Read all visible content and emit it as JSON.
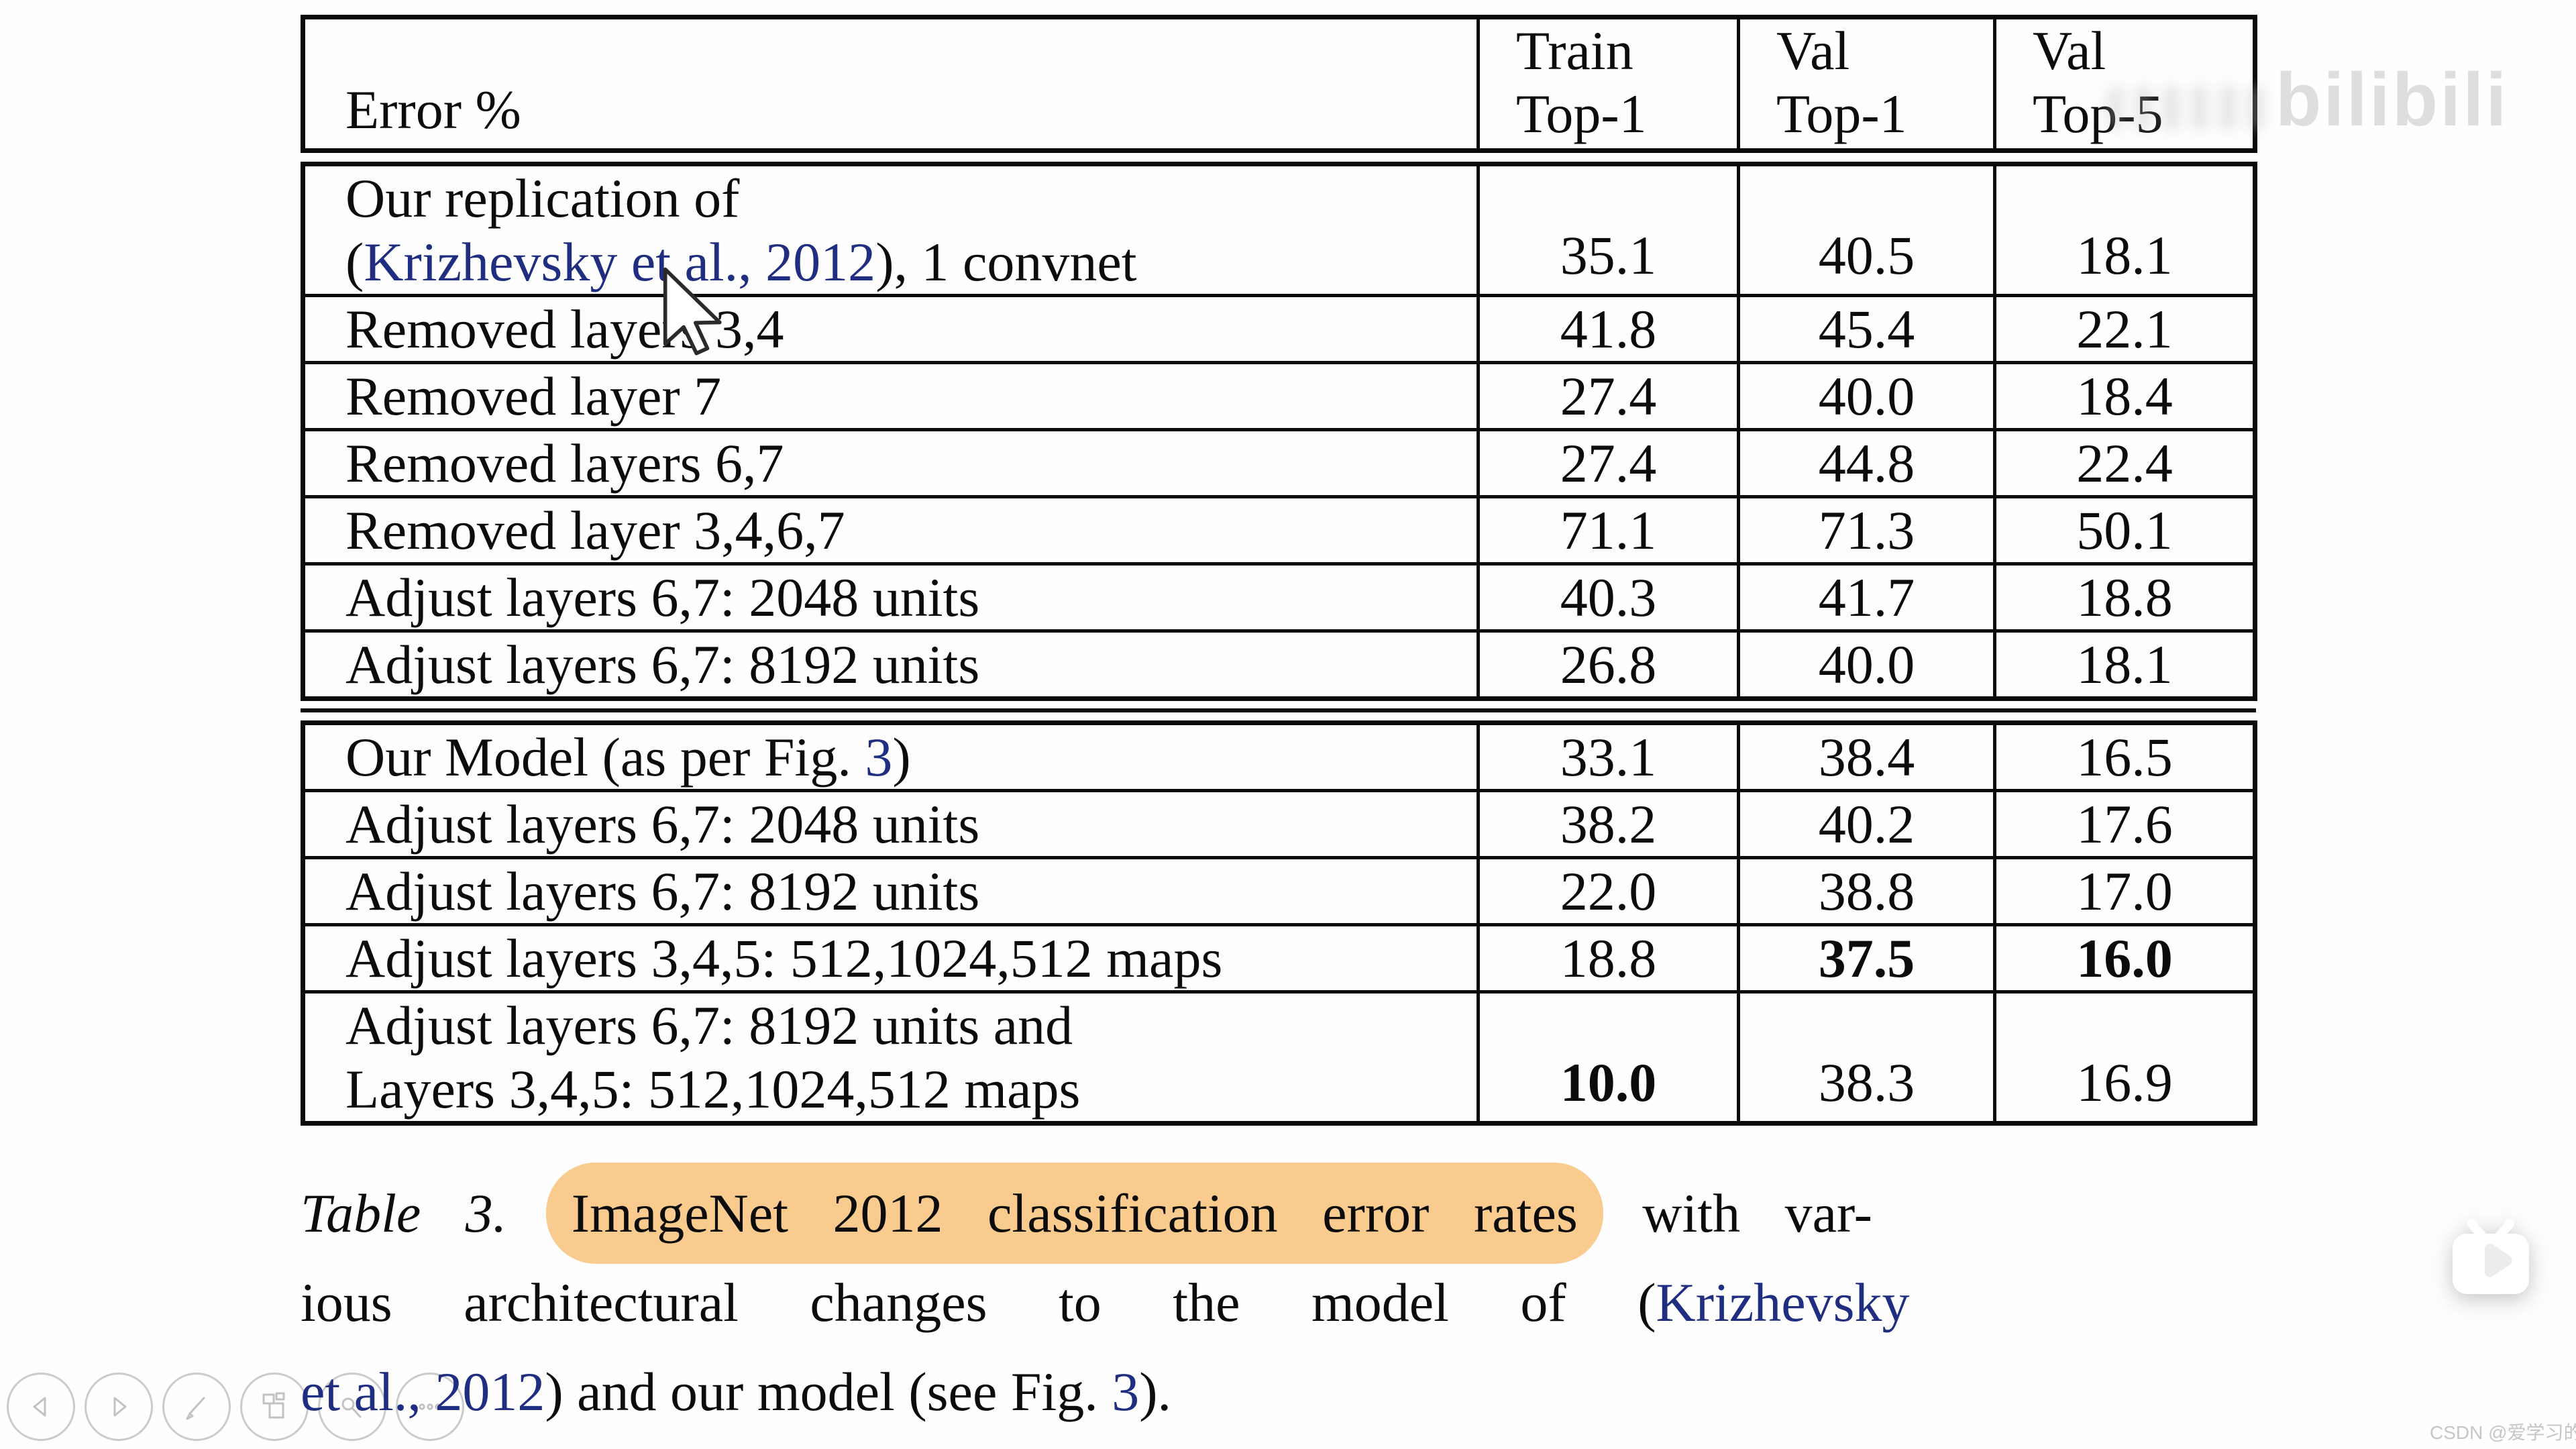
{
  "colors": {
    "link_blue": "#1f2e80",
    "highlight_orange": "#f9cb8e",
    "table_border": "#0a0a0a",
    "page_background": "#fefefe"
  },
  "table": {
    "header": {
      "row_label_column": "Error %",
      "value_columns": [
        [
          "Train",
          "Top-1"
        ],
        [
          "Val",
          "Top-1"
        ],
        [
          "Val",
          "Top-5"
        ]
      ]
    },
    "block1": {
      "rows": [
        {
          "lines": [
            [
              {
                "t": "Our replication of"
              }
            ],
            [
              {
                "t": "("
              },
              {
                "t": "Krizhevsky et al., 2012",
                "link": true
              },
              {
                "t": "), 1 convnet"
              }
            ]
          ],
          "values": [
            {
              "t": "35.1"
            },
            {
              "t": "40.5"
            },
            {
              "t": "18.1"
            }
          ]
        },
        {
          "lines": [
            [
              {
                "t": "Removed layers 3,4"
              }
            ]
          ],
          "values": [
            {
              "t": "41.8"
            },
            {
              "t": "45.4"
            },
            {
              "t": "22.1"
            }
          ]
        },
        {
          "lines": [
            [
              {
                "t": "Removed layer 7"
              }
            ]
          ],
          "values": [
            {
              "t": "27.4"
            },
            {
              "t": "40.0"
            },
            {
              "t": "18.4"
            }
          ]
        },
        {
          "lines": [
            [
              {
                "t": "Removed layers 6,7"
              }
            ]
          ],
          "values": [
            {
              "t": "27.4"
            },
            {
              "t": "44.8"
            },
            {
              "t": "22.4"
            }
          ]
        },
        {
          "lines": [
            [
              {
                "t": "Removed layer 3,4,6,7"
              }
            ]
          ],
          "values": [
            {
              "t": "71.1"
            },
            {
              "t": "71.3"
            },
            {
              "t": "50.1"
            }
          ]
        },
        {
          "lines": [
            [
              {
                "t": "Adjust layers 6,7: 2048 units"
              }
            ]
          ],
          "values": [
            {
              "t": "40.3"
            },
            {
              "t": "41.7"
            },
            {
              "t": "18.8"
            }
          ]
        },
        {
          "lines": [
            [
              {
                "t": "Adjust layers 6,7: 8192 units"
              }
            ]
          ],
          "values": [
            {
              "t": "26.8"
            },
            {
              "t": "40.0"
            },
            {
              "t": "18.1"
            }
          ]
        }
      ]
    },
    "block2": {
      "rows": [
        {
          "lines": [
            [
              {
                "t": "Our Model (as per Fig. "
              },
              {
                "t": "3",
                "link": true
              },
              {
                "t": ")"
              }
            ]
          ],
          "values": [
            {
              "t": "33.1"
            },
            {
              "t": "38.4"
            },
            {
              "t": "16.5"
            }
          ]
        },
        {
          "lines": [
            [
              {
                "t": "Adjust layers 6,7: 2048 units"
              }
            ]
          ],
          "values": [
            {
              "t": "38.2"
            },
            {
              "t": "40.2"
            },
            {
              "t": "17.6"
            }
          ]
        },
        {
          "lines": [
            [
              {
                "t": "Adjust layers 6,7: 8192 units"
              }
            ]
          ],
          "values": [
            {
              "t": "22.0"
            },
            {
              "t": "38.8"
            },
            {
              "t": "17.0"
            }
          ]
        },
        {
          "lines": [
            [
              {
                "t": "Adjust layers 3,4,5: 512,1024,512 maps"
              }
            ]
          ],
          "values": [
            {
              "t": "18.8"
            },
            {
              "t": "37.5",
              "b": true
            },
            {
              "t": "16.0",
              "b": true
            }
          ]
        },
        {
          "lines": [
            [
              {
                "t": "Adjust layers 6,7: 8192 units and"
              }
            ],
            [
              {
                "t": "Layers 3,4,5: 512,1024,512 maps"
              }
            ]
          ],
          "values": [
            {
              "t": "10.0",
              "b": true
            },
            {
              "t": "38.3"
            },
            {
              "t": "16.9"
            }
          ]
        }
      ]
    }
  },
  "caption": {
    "lines": [
      [
        {
          "t": "Table 3.",
          "i": true
        },
        {
          "t": " "
        },
        {
          "t": "ImageNet 2012 classification error rates",
          "hl": true
        },
        {
          "t": " with var-"
        }
      ],
      [
        {
          "t": "ious architectural changes to the model of ("
        },
        {
          "t": "Krizhevsky",
          "link": true
        }
      ],
      [
        {
          "t": "et al., 2012",
          "link": true
        },
        {
          "t": ") and our model (see Fig. "
        },
        {
          "t": "3",
          "link": true
        },
        {
          "t": ")."
        }
      ]
    ]
  },
  "player": {
    "buttons": [
      {
        "name": "previous",
        "icon": "triangle-left"
      },
      {
        "name": "next",
        "icon": "triangle-right"
      },
      {
        "name": "pen",
        "icon": "pen"
      },
      {
        "name": "slides",
        "icon": "slides"
      },
      {
        "name": "eraser",
        "icon": "eraser"
      },
      {
        "name": "more",
        "icon": "dots"
      }
    ]
  },
  "watermarks": {
    "bilibili": "bilibili",
    "csdn": "CSDN @爱学习的书文"
  }
}
